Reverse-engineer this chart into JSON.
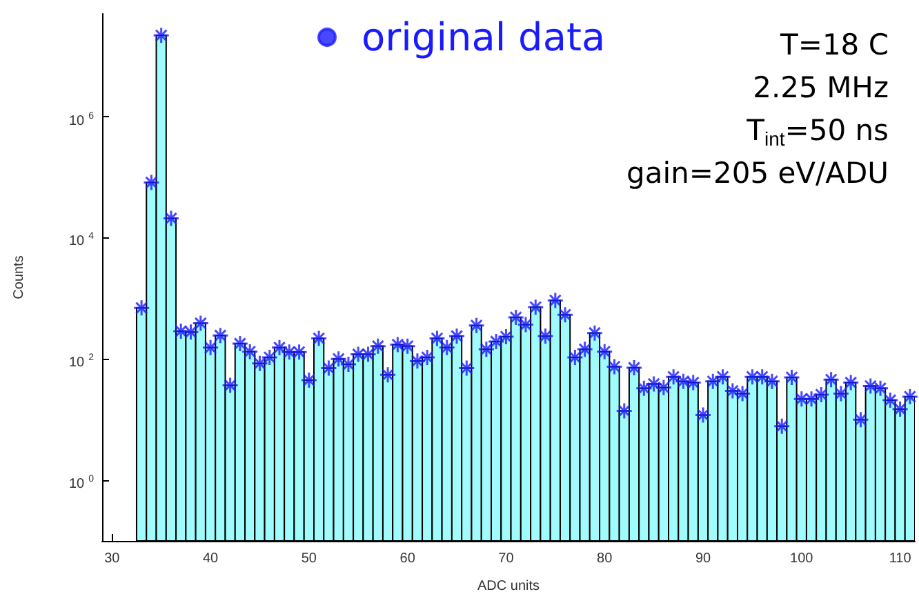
{
  "chart_data": {
    "type": "histogram",
    "xlabel": "ADC units",
    "ylabel": "Counts",
    "log": "y",
    "grid": false,
    "legend": "top",
    "xlim": [
      29,
      111.5
    ],
    "xticks": [
      30,
      40,
      50,
      60,
      70,
      80,
      90,
      100,
      110
    ],
    "ylim": [
      0.1,
      50000000
    ],
    "yticks": [
      {
        "value": 1,
        "label": "10$^{0}$"
      },
      {
        "value": 100,
        "label": "10$^{2}$"
      },
      {
        "value": 10000,
        "label": "10$^{4}$"
      },
      {
        "value": 1000000,
        "label": "10$^{6}$"
      }
    ],
    "bins": [
      32.5,
      33.5,
      34.5,
      35.5,
      36.5,
      37.5,
      38.5,
      39.5,
      40.5,
      41.5,
      42.5,
      43.5,
      44.5,
      45.5,
      46.5,
      47.5,
      48.5,
      49.5,
      50.5,
      51.5,
      52.5,
      53.5,
      54.5,
      55.5,
      56.5,
      57.5,
      58.5,
      59.5,
      60.5,
      61.5,
      62.5,
      63.5,
      64.5,
      65.5,
      66.5,
      67.5,
      68.5,
      69.5,
      70.5,
      71.5,
      72.5,
      73.5,
      74.5,
      75.5,
      76.5,
      77.5,
      78.5,
      79.5,
      80.5,
      81.5,
      82.5,
      83.5,
      84.5,
      85.5,
      86.5,
      87.5,
      88.5,
      89.5,
      90.5,
      91.5,
      92.5,
      93.5,
      94.5,
      95.5,
      96.5,
      97.5,
      98.5,
      99.5,
      100.5,
      101.5,
      102.5,
      103.5,
      104.5,
      105.5,
      106.5,
      107.5,
      108.5,
      109.5,
      110.5,
      111.5
    ],
    "color": "#a0fcfc",
    "values": [
      700,
      82000,
      22000000,
      21000,
      290,
      280,
      390,
      155,
      245,
      37,
      180,
      133,
      85,
      107,
      155,
      131,
      131,
      45,
      220,
      71,
      101,
      82,
      120,
      120,
      164,
      55,
      174,
      164,
      93,
      107,
      220,
      155,
      240,
      71,
      360,
      145,
      195,
      235,
      490,
      370,
      720,
      240,
      930,
      540,
      107,
      145,
      270,
      133,
      75,
      14,
      72,
      33,
      39,
      34,
      51,
      43,
      41,
      12,
      43,
      51,
      30,
      27,
      51,
      51,
      43,
      7.8,
      50,
      22,
      22,
      26,
      46,
      27,
      41,
      10,
      36,
      33,
      21,
      15,
      24
    ],
    "series": [
      {
        "type": "scatter",
        "name": "original data",
        "color": "#1a1aff",
        "marker": "cross",
        "x": [
          33,
          34,
          35,
          36,
          37,
          38,
          39,
          40,
          41,
          42,
          43,
          44,
          45,
          46,
          47,
          48,
          49,
          50,
          51,
          52,
          53,
          54,
          55,
          56,
          57,
          58,
          59,
          60,
          61,
          62,
          63,
          64,
          65,
          66,
          67,
          68,
          69,
          70,
          71,
          72,
          73,
          74,
          75,
          76,
          77,
          78,
          79,
          80,
          81,
          82,
          83,
          84,
          85,
          86,
          87,
          88,
          89,
          90,
          91,
          92,
          93,
          94,
          95,
          96,
          97,
          98,
          99,
          100,
          101,
          102,
          103,
          104,
          105,
          106,
          107,
          108,
          109,
          110,
          111
        ],
        "values": [
          700,
          82000,
          22000000,
          21000,
          290,
          280,
          390,
          155,
          245,
          37,
          180,
          133,
          85,
          107,
          155,
          131,
          131,
          45,
          220,
          71,
          101,
          82,
          120,
          120,
          164,
          55,
          174,
          164,
          93,
          107,
          220,
          155,
          240,
          71,
          360,
          145,
          195,
          235,
          490,
          370,
          720,
          240,
          930,
          540,
          107,
          145,
          270,
          133,
          75,
          14,
          72,
          33,
          39,
          34,
          51,
          43,
          41,
          12,
          43,
          51,
          30,
          27,
          51,
          51,
          43,
          7.8,
          50,
          22,
          22,
          26,
          46,
          27,
          41,
          10,
          36,
          33,
          21,
          15,
          24
        ]
      }
    ],
    "annotations": [
      "T=18 C",
      "2.25 MHz",
      "T$_{int}$=50 ns",
      "gain=205 eV/ADU"
    ]
  }
}
